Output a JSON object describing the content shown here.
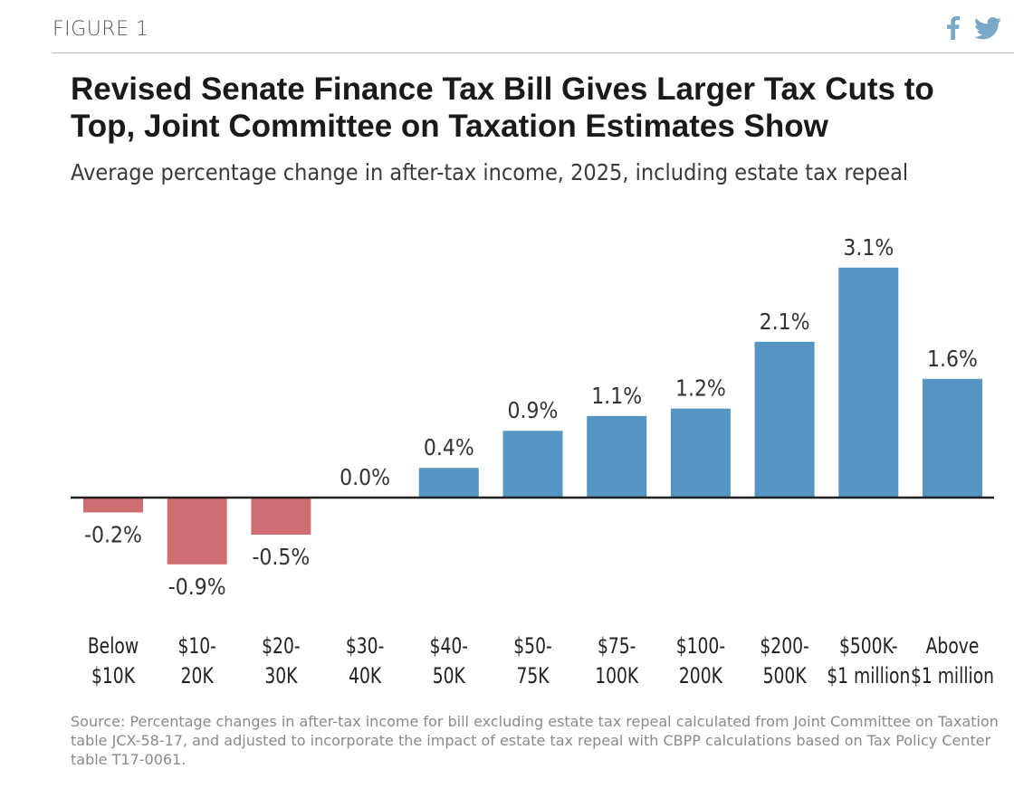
{
  "header": {
    "figure_label": "FIGURE 1",
    "share_icons": [
      {
        "name": "facebook-icon",
        "color": "#7aa8c8"
      },
      {
        "name": "twitter-icon",
        "color": "#7aa8c8"
      }
    ]
  },
  "chart_data": {
    "type": "bar",
    "title": "Revised Senate Finance Tax Bill Gives Larger Tax Cuts to Top, Joint Committee on Taxation Estimates Show",
    "subtitle": "Average percentage change in after-tax income, 2025, including estate tax repeal",
    "categories": [
      [
        "Below",
        "$10K"
      ],
      [
        "$10-",
        "20K"
      ],
      [
        "$20-",
        "30K"
      ],
      [
        "$30-",
        "40K"
      ],
      [
        "$40-",
        "50K"
      ],
      [
        "$50-",
        "75K"
      ],
      [
        "$75-",
        "100K"
      ],
      [
        "$100-",
        "200K"
      ],
      [
        "$200-",
        "500K"
      ],
      [
        "$500K-",
        "$1 million"
      ],
      [
        "Above",
        "$1 million"
      ]
    ],
    "values": [
      -0.2,
      -0.9,
      -0.5,
      0.0,
      0.4,
      0.9,
      1.1,
      1.2,
      2.1,
      3.1,
      1.6
    ],
    "value_labels": [
      "-0.2%",
      "-0.9%",
      "-0.5%",
      "0.0%",
      "0.4%",
      "0.9%",
      "1.1%",
      "1.2%",
      "2.1%",
      "3.1%",
      "1.6%"
    ],
    "ylim": [
      -1.2,
      3.5
    ],
    "xlabel": "",
    "ylabel": "",
    "colors": {
      "positive": "#5595c4",
      "negative": "#cf6e72",
      "axis": "#222222"
    },
    "grid": false
  },
  "source": "Source: Percentage changes in after-tax income for bill excluding estate tax repeal calculated from Joint Committee on Taxation table JCX-58-17, and adjusted to incorporate the impact of estate tax repeal with CBPP calculations based on Tax Policy Center table T17-0061."
}
